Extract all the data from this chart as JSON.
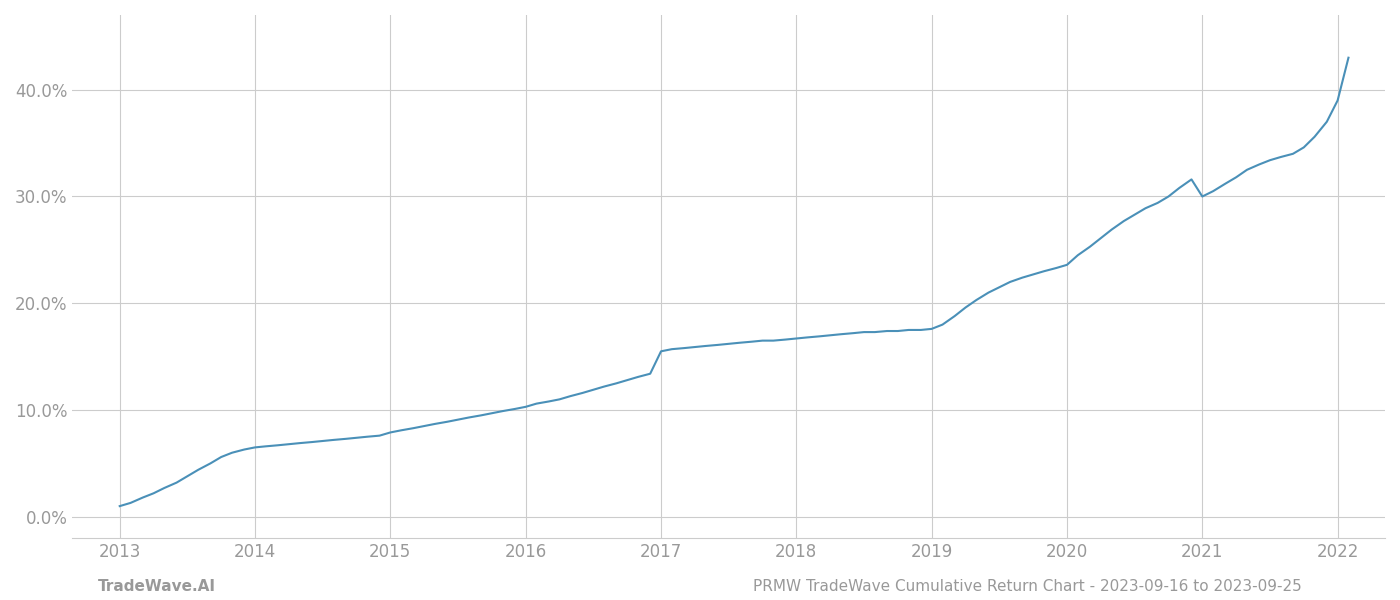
{
  "x_years": [
    2013.0,
    2013.08,
    2013.17,
    2013.25,
    2013.33,
    2013.42,
    2013.5,
    2013.58,
    2013.67,
    2013.75,
    2013.83,
    2013.92,
    2014.0,
    2014.08,
    2014.17,
    2014.25,
    2014.33,
    2014.42,
    2014.5,
    2014.58,
    2014.67,
    2014.75,
    2014.83,
    2014.92,
    2015.0,
    2015.08,
    2015.17,
    2015.25,
    2015.33,
    2015.42,
    2015.5,
    2015.58,
    2015.67,
    2015.75,
    2015.83,
    2015.92,
    2016.0,
    2016.08,
    2016.17,
    2016.25,
    2016.33,
    2016.42,
    2016.5,
    2016.58,
    2016.67,
    2016.75,
    2016.83,
    2016.92,
    2017.0,
    2017.08,
    2017.17,
    2017.25,
    2017.33,
    2017.42,
    2017.5,
    2017.58,
    2017.67,
    2017.75,
    2017.83,
    2017.92,
    2018.0,
    2018.08,
    2018.17,
    2018.25,
    2018.33,
    2018.42,
    2018.5,
    2018.58,
    2018.67,
    2018.75,
    2018.83,
    2018.92,
    2019.0,
    2019.08,
    2019.17,
    2019.25,
    2019.33,
    2019.42,
    2019.5,
    2019.58,
    2019.67,
    2019.75,
    2019.83,
    2019.92,
    2020.0,
    2020.08,
    2020.17,
    2020.25,
    2020.33,
    2020.42,
    2020.5,
    2020.58,
    2020.67,
    2020.75,
    2020.83,
    2020.92,
    2021.0,
    2021.08,
    2021.17,
    2021.25,
    2021.33,
    2021.42,
    2021.5,
    2021.58,
    2021.67,
    2021.75,
    2021.83,
    2021.92,
    2022.0,
    2022.08
  ],
  "y_values": [
    0.01,
    0.013,
    0.018,
    0.022,
    0.027,
    0.032,
    0.038,
    0.044,
    0.05,
    0.056,
    0.06,
    0.063,
    0.065,
    0.066,
    0.067,
    0.068,
    0.069,
    0.07,
    0.071,
    0.072,
    0.073,
    0.074,
    0.075,
    0.076,
    0.079,
    0.081,
    0.083,
    0.085,
    0.087,
    0.089,
    0.091,
    0.093,
    0.095,
    0.097,
    0.099,
    0.101,
    0.103,
    0.106,
    0.108,
    0.11,
    0.113,
    0.116,
    0.119,
    0.122,
    0.125,
    0.128,
    0.131,
    0.134,
    0.155,
    0.157,
    0.158,
    0.159,
    0.16,
    0.161,
    0.162,
    0.163,
    0.164,
    0.165,
    0.165,
    0.166,
    0.167,
    0.168,
    0.169,
    0.17,
    0.171,
    0.172,
    0.173,
    0.173,
    0.174,
    0.174,
    0.175,
    0.175,
    0.176,
    0.18,
    0.188,
    0.196,
    0.203,
    0.21,
    0.215,
    0.22,
    0.224,
    0.227,
    0.23,
    0.233,
    0.236,
    0.245,
    0.253,
    0.261,
    0.269,
    0.277,
    0.283,
    0.289,
    0.294,
    0.3,
    0.308,
    0.316,
    0.3,
    0.305,
    0.312,
    0.318,
    0.325,
    0.33,
    0.334,
    0.337,
    0.34,
    0.346,
    0.356,
    0.37,
    0.39,
    0.43
  ],
  "line_color": "#4a90b8",
  "line_width": 1.5,
  "background_color": "#ffffff",
  "grid_color": "#cccccc",
  "tick_label_color": "#999999",
  "ytick_labels": [
    "0.0%",
    "10.0%",
    "20.0%",
    "30.0%",
    "40.0%"
  ],
  "ytick_values": [
    0.0,
    0.1,
    0.2,
    0.3,
    0.4
  ],
  "xtick_labels": [
    "2013",
    "2014",
    "2015",
    "2016",
    "2017",
    "2018",
    "2019",
    "2020",
    "2021",
    "2022"
  ],
  "xtick_values": [
    2013,
    2014,
    2015,
    2016,
    2017,
    2018,
    2019,
    2020,
    2021,
    2022
  ],
  "xlim": [
    2012.65,
    2022.35
  ],
  "ylim": [
    -0.02,
    0.47
  ],
  "footer_left": "TradeWave.AI",
  "footer_right": "PRMW TradeWave Cumulative Return Chart - 2023-09-16 to 2023-09-25",
  "footer_color": "#999999",
  "footer_fontsize": 11
}
